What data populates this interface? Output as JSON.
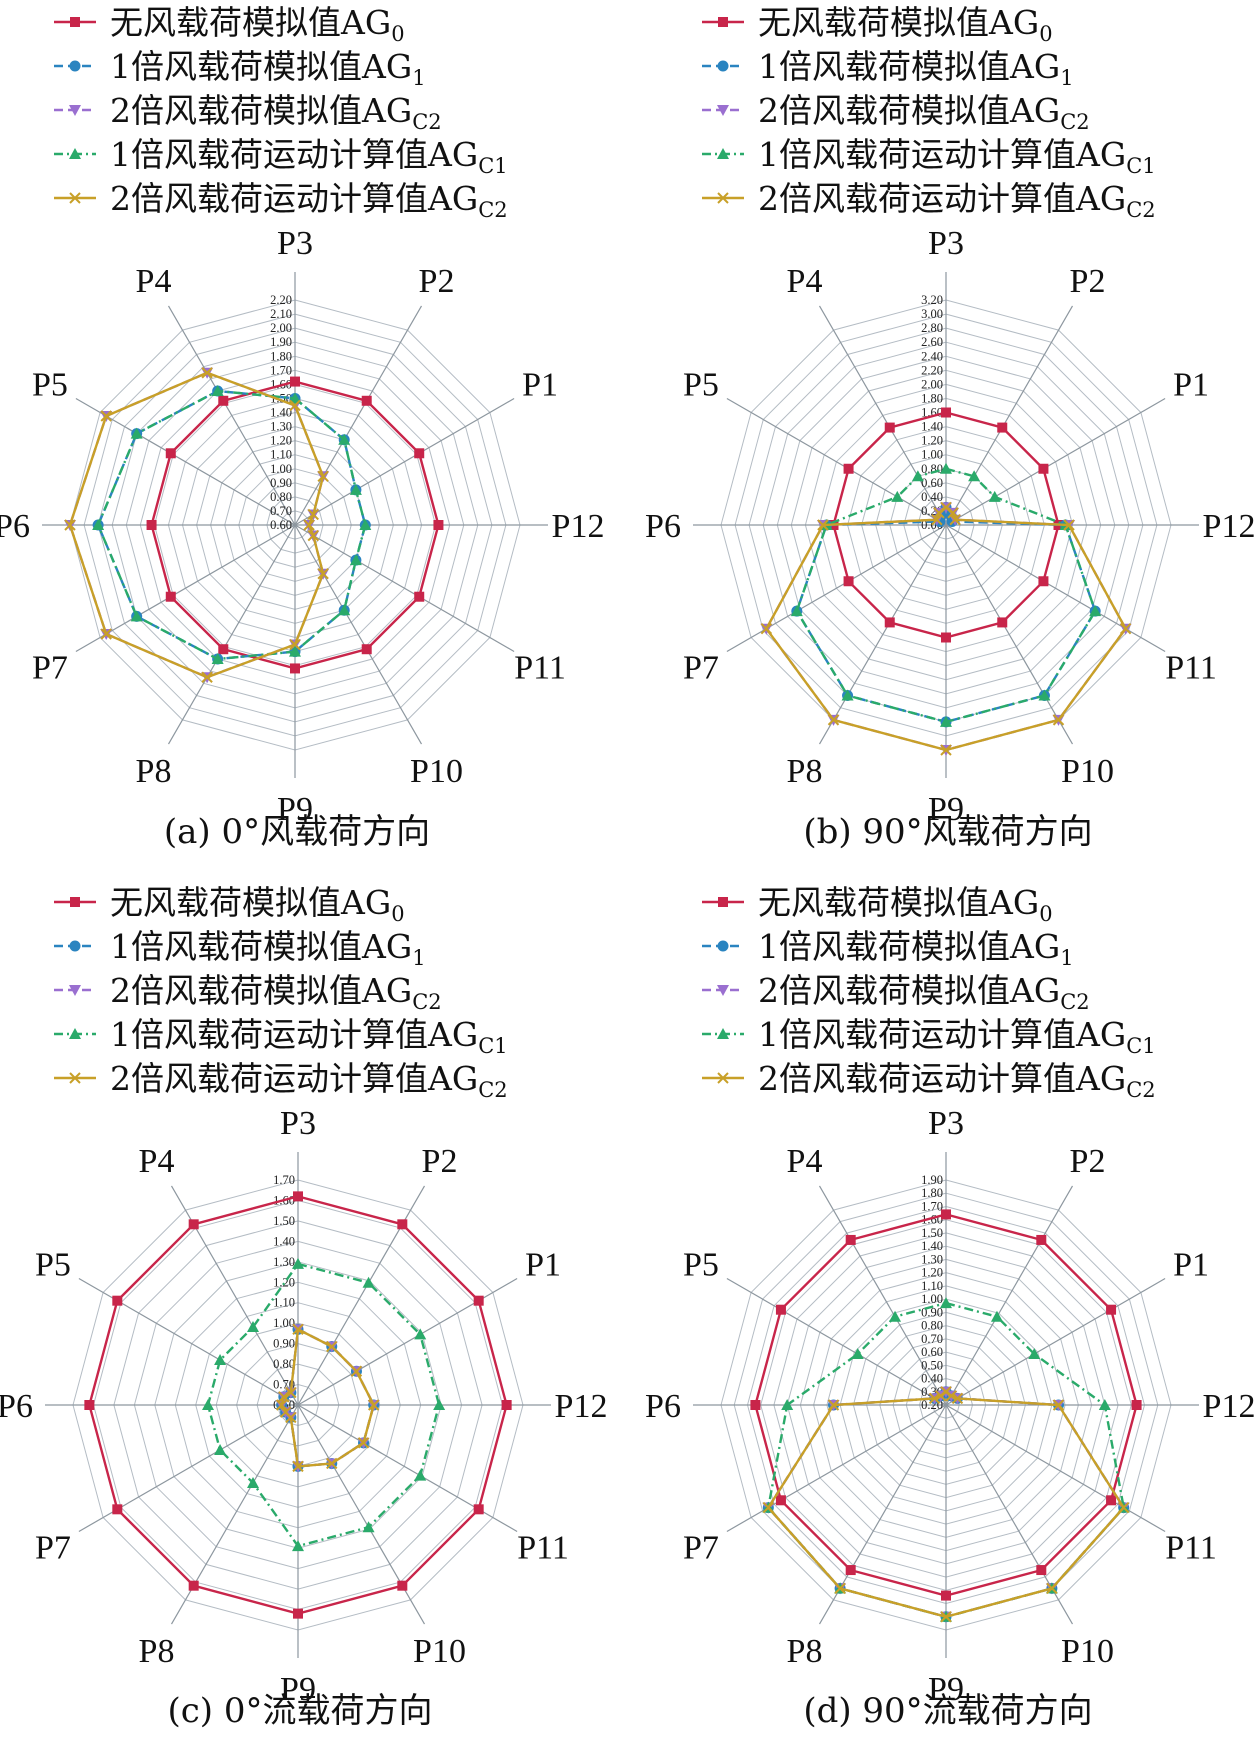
{
  "legend": [
    {
      "label": "无风载荷模拟值AG",
      "sub": "0",
      "color": "#c8254a",
      "marker": "square",
      "dash": "solid"
    },
    {
      "label": "1倍风载荷模拟值AG",
      "sub": "1",
      "color": "#2a84c0",
      "marker": "circle",
      "dash": "dash"
    },
    {
      "label": "2倍风载荷模拟值AG",
      "sub": "C2",
      "color": "#9a6fd0",
      "marker": "triangle-down",
      "dash": "dash"
    },
    {
      "label": "1倍风载荷运动计算值AG",
      "sub": "C1",
      "color": "#2aaa6a",
      "marker": "triangle-up",
      "dash": "dashdot"
    },
    {
      "label": "2倍风载荷运动计算值AG",
      "sub": "C2",
      "color": "#c8a028",
      "marker": "x",
      "dash": "solid"
    }
  ],
  "chart_data": [
    {
      "type": "radar",
      "caption": "(a) 0°风载荷方向",
      "categories": [
        "P3",
        "P2",
        "P1",
        "P12",
        "P11",
        "P10",
        "P9",
        "P8",
        "P7",
        "P6",
        "P5",
        "P4"
      ],
      "ylim": [
        0.6,
        2.2
      ],
      "ticks": [
        "0.60",
        "0.70",
        "0.80",
        "0.90",
        "1.00",
        "1.10",
        "1.20",
        "1.30",
        "1.40",
        "1.50",
        "1.60",
        "1.70",
        "1.80",
        "1.90",
        "2.00",
        "2.10",
        "2.20"
      ],
      "series": [
        {
          "name": "无风载荷模拟值AG0",
          "values": [
            1.62,
            1.62,
            1.62,
            1.62,
            1.62,
            1.62,
            1.62,
            1.62,
            1.62,
            1.62,
            1.62,
            1.62
          ]
        },
        {
          "name": "1倍风载荷模拟值AG1",
          "values": [
            1.5,
            1.3,
            1.1,
            1.1,
            1.1,
            1.3,
            1.5,
            1.7,
            1.9,
            2.0,
            1.9,
            1.7
          ]
        },
        {
          "name": "2倍风载荷模拟值AGC2",
          "values": [
            1.45,
            1.0,
            0.75,
            0.7,
            0.75,
            1.0,
            1.45,
            1.85,
            2.15,
            2.2,
            2.15,
            1.85
          ]
        },
        {
          "name": "1倍风载荷运动计算值AGC1",
          "values": [
            1.5,
            1.3,
            1.1,
            1.1,
            1.1,
            1.3,
            1.5,
            1.7,
            1.9,
            2.0,
            1.9,
            1.7
          ]
        },
        {
          "name": "2倍风载荷运动计算值AGC2",
          "values": [
            1.45,
            1.0,
            0.75,
            0.7,
            0.75,
            1.0,
            1.45,
            1.85,
            2.15,
            2.2,
            2.15,
            1.85
          ]
        }
      ]
    },
    {
      "type": "radar",
      "caption": "(b) 90°风载荷方向",
      "categories": [
        "P3",
        "P2",
        "P1",
        "P12",
        "P11",
        "P10",
        "P9",
        "P8",
        "P7",
        "P6",
        "P5",
        "P4"
      ],
      "ylim": [
        0.0,
        3.2
      ],
      "ticks": [
        "0.00",
        "0.20",
        "0.40",
        "0.60",
        "0.80",
        "1.00",
        "1.20",
        "1.40",
        "1.60",
        "1.80",
        "2.00",
        "2.20",
        "2.40",
        "2.60",
        "2.80",
        "3.00",
        "3.20"
      ],
      "series": [
        {
          "name": "无风载荷模拟值AG0",
          "values": [
            1.6,
            1.6,
            1.6,
            1.6,
            1.6,
            1.6,
            1.6,
            1.6,
            1.6,
            1.6,
            1.6,
            1.6
          ]
        },
        {
          "name": "1倍风载荷模拟值AG1",
          "values": [
            0.25,
            0.15,
            0.1,
            1.7,
            2.45,
            2.8,
            2.8,
            2.8,
            2.45,
            1.7,
            0.1,
            0.15
          ]
        },
        {
          "name": "2倍风载荷模拟值AGC2",
          "values": [
            0.25,
            0.2,
            0.15,
            1.75,
            2.95,
            3.2,
            3.2,
            3.2,
            2.95,
            1.75,
            0.15,
            0.2
          ]
        },
        {
          "name": "1倍风载荷运动计算值AGC1",
          "values": [
            0.8,
            0.8,
            0.8,
            1.7,
            2.45,
            2.8,
            2.8,
            2.8,
            2.45,
            1.7,
            0.8,
            0.8
          ]
        },
        {
          "name": "2倍风载荷运动计算值AGC2",
          "values": [
            0.25,
            0.2,
            0.15,
            1.75,
            2.95,
            3.2,
            3.2,
            3.2,
            2.95,
            1.75,
            0.15,
            0.2
          ]
        }
      ]
    },
    {
      "type": "radar",
      "caption": "(c) 0°流载荷方向",
      "categories": [
        "P3",
        "P2",
        "P1",
        "P12",
        "P11",
        "P10",
        "P9",
        "P8",
        "P7",
        "P6",
        "P5",
        "P4"
      ],
      "ylim": [
        0.6,
        1.7
      ],
      "ticks": [
        "0.60",
        "0.70",
        "0.80",
        "0.90",
        "1.00",
        "1.10",
        "1.20",
        "1.30",
        "1.40",
        "1.50",
        "1.60",
        "1.70"
      ],
      "series": [
        {
          "name": "无风载荷模拟值AG0",
          "values": [
            1.62,
            1.62,
            1.62,
            1.62,
            1.62,
            1.62,
            1.62,
            1.62,
            1.62,
            1.62,
            1.62,
            1.62
          ]
        },
        {
          "name": "1倍风载荷模拟值AG1",
          "values": [
            0.97,
            0.93,
            0.93,
            0.97,
            0.97,
            0.93,
            0.9,
            0.67,
            0.67,
            0.68,
            0.68,
            0.67
          ]
        },
        {
          "name": "2倍风载荷模拟值AGC2",
          "values": [
            0.97,
            0.93,
            0.93,
            0.97,
            0.97,
            0.93,
            0.9,
            0.67,
            0.67,
            0.68,
            0.68,
            0.67
          ]
        },
        {
          "name": "1倍风载荷运动计算值AGC1",
          "values": [
            1.29,
            1.29,
            1.29,
            1.29,
            1.29,
            1.29,
            1.29,
            1.04,
            1.04,
            1.04,
            1.04,
            1.04
          ]
        },
        {
          "name": "2倍风载荷运动计算值AGC2",
          "values": [
            0.97,
            0.93,
            0.93,
            0.97,
            0.97,
            0.93,
            0.9,
            0.67,
            0.67,
            0.68,
            0.68,
            0.67
          ]
        }
      ]
    },
    {
      "type": "radar",
      "caption": "(d) 90°流载荷方向",
      "categories": [
        "P3",
        "P2",
        "P1",
        "P12",
        "P11",
        "P10",
        "P9",
        "P8",
        "P7",
        "P6",
        "P5",
        "P4"
      ],
      "ylim": [
        0.2,
        1.9
      ],
      "ticks": [
        "0.20",
        "0.30",
        "0.40",
        "0.50",
        "0.60",
        "0.70",
        "0.80",
        "0.90",
        "1.00",
        "1.10",
        "1.20",
        "1.30",
        "1.40",
        "1.50",
        "1.60",
        "1.70",
        "1.80",
        "1.90"
      ],
      "series": [
        {
          "name": "无风载荷模拟值AG0",
          "values": [
            1.64,
            1.64,
            1.64,
            1.64,
            1.64,
            1.64,
            1.64,
            1.64,
            1.64,
            1.64,
            1.64,
            1.64
          ]
        },
        {
          "name": "1倍风载荷模拟值AG1",
          "values": [
            0.3,
            0.28,
            0.3,
            1.05,
            1.75,
            1.8,
            1.8,
            1.8,
            1.75,
            1.05,
            0.3,
            0.28
          ]
        },
        {
          "name": "2倍风载荷模拟值AGC2",
          "values": [
            0.3,
            0.28,
            0.3,
            1.05,
            1.75,
            1.8,
            1.8,
            1.8,
            1.75,
            1.05,
            0.3,
            0.28
          ]
        },
        {
          "name": "1倍风载荷运动计算值AGC1",
          "values": [
            0.97,
            0.97,
            0.97,
            1.4,
            1.75,
            1.8,
            1.8,
            1.8,
            1.75,
            1.4,
            0.97,
            0.97
          ]
        },
        {
          "name": "2倍风载荷运动计算值AGC2",
          "values": [
            0.3,
            0.28,
            0.3,
            1.05,
            1.75,
            1.8,
            1.8,
            1.8,
            1.75,
            1.05,
            0.3,
            0.28
          ]
        }
      ]
    }
  ]
}
